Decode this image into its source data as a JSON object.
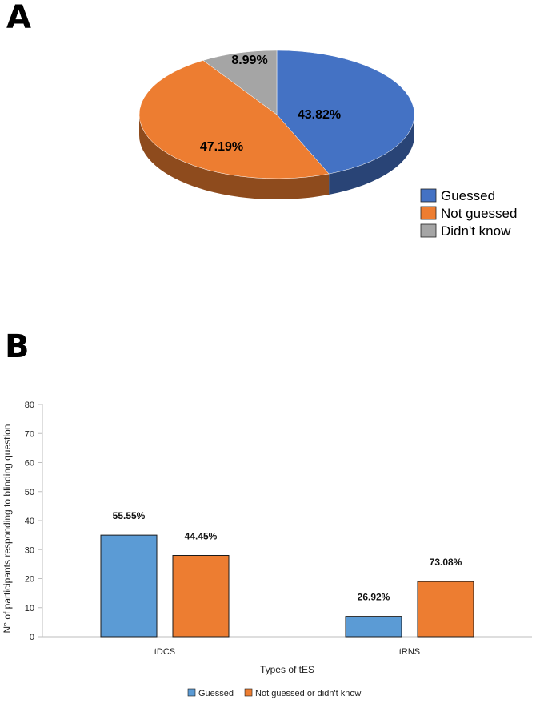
{
  "panels": {
    "a": "A",
    "b": "B"
  },
  "chart_data": [
    {
      "type": "pie",
      "categories": [
        "Guessed",
        "Not guessed",
        "Didn't know"
      ],
      "values": [
        43.82,
        47.19,
        8.99
      ],
      "labels": [
        "43.82%",
        "47.19%",
        "8.99%"
      ],
      "colors": [
        "#4472C4",
        "#ED7D31",
        "#A5A5A5"
      ],
      "legend_position": "bottom-right",
      "style": "3d"
    },
    {
      "type": "bar",
      "categories": [
        "tDCS",
        "tRNS"
      ],
      "series": [
        {
          "name": "Guessed",
          "values": [
            35,
            7
          ],
          "labels": [
            "55.55%",
            "26.92%"
          ],
          "color": "#5B9BD5"
        },
        {
          "name": "Not guessed or didn't know",
          "values": [
            28,
            19
          ],
          "labels": [
            "44.45%",
            "73.08%"
          ],
          "color": "#ED7D31"
        }
      ],
      "xlabel": "Types of tES",
      "ylabel": "N° of participants responding to blinding question",
      "ylim": [
        0,
        80
      ],
      "yticks": [
        0,
        10,
        20,
        30,
        40,
        50,
        60,
        70,
        80
      ],
      "grid": false,
      "legend_position": "bottom"
    }
  ]
}
